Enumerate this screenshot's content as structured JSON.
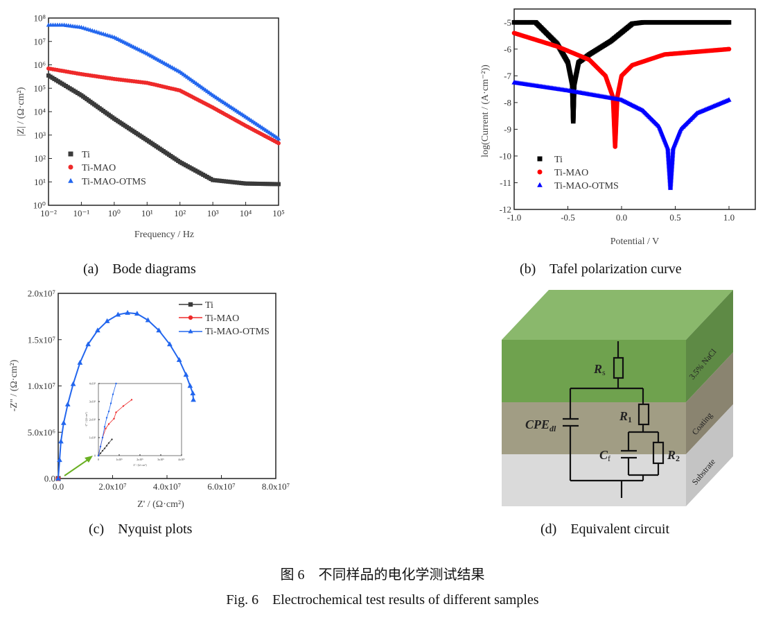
{
  "colors": {
    "Ti": "#3a3a3a",
    "Ti-MAO": "#ee2a2a",
    "Ti-MAO-OTMS": "#2266ee",
    "tafel_Ti": "#000000",
    "tafel_MAO": "#ff0000",
    "tafel_OTMS": "#0000ff",
    "arrow": "#6ab023"
  },
  "captions": {
    "a": "(a)    Bode diagrams",
    "b": "(b)    Tafel polarization curve",
    "c": "(c)    Nyquist plots",
    "d": "(d)    Equivalent circuit"
  },
  "figure": {
    "title_cn": "图 6    不同样品的电化学测试结果",
    "title_en": "Fig. 6    Electrochemical test results of different samples"
  },
  "chart_data": [
    {
      "id": "bode",
      "type": "scatter",
      "xlabel": "Frequency / Hz",
      "ylabel": "|Z| / (Ω·cm²)",
      "xscale": "log",
      "yscale": "log",
      "xlim": [
        0.01,
        100000
      ],
      "ylim": [
        1,
        100000000
      ],
      "xticks": [
        0.01,
        0.1,
        1,
        10,
        100,
        1000,
        10000,
        100000
      ],
      "xtick_labels": [
        "10⁻²",
        "10⁻¹",
        "10⁰",
        "10¹",
        "10²",
        "10³",
        "10⁴",
        "10⁵"
      ],
      "yticks": [
        1,
        10,
        100,
        1000,
        10000,
        100000,
        1000000,
        10000000,
        100000000
      ],
      "ytick_labels": [
        "10⁰",
        "10¹",
        "10²",
        "10³",
        "10⁴",
        "10⁵",
        "10⁶",
        "10⁷",
        "10⁸"
      ],
      "legend": "bottom-left",
      "series": [
        {
          "name": "Ti",
          "marker": "square",
          "x": [
            0.01,
            0.1,
            1,
            10,
            100,
            1000,
            10000,
            100000
          ],
          "y": [
            350000,
            50000,
            5000,
            600,
            70,
            12,
            8.5,
            8
          ]
        },
        {
          "name": "Ti-MAO",
          "marker": "circle",
          "x": [
            0.01,
            0.1,
            1,
            10,
            100,
            1000,
            10000,
            100000
          ],
          "y": [
            700000,
            400000,
            250000,
            170000,
            80000,
            15000,
            2500,
            450
          ]
        },
        {
          "name": "Ti-MAO-OTMS",
          "marker": "triangle",
          "x": [
            0.01,
            0.03,
            0.1,
            1,
            10,
            100,
            1000,
            10000,
            100000
          ],
          "y": [
            50000000,
            50000000,
            40000000,
            15000000,
            3000000,
            500000,
            50000,
            6000,
            700
          ]
        }
      ]
    },
    {
      "id": "tafel",
      "type": "scatter",
      "xlabel": "Potential / V",
      "ylabel": "log(Current / (A·cm⁻²))",
      "xlim": [
        -1.0,
        1.245
      ],
      "ylim": [
        -12,
        -4.5
      ],
      "xticks": [
        -1.0,
        -0.5,
        0.0,
        0.5,
        1.0
      ],
      "xtick_labels": [
        "-1.0",
        "-0.5",
        "0.0",
        "0.5",
        "1.0"
      ],
      "yticks": [
        -12,
        -11,
        -10,
        -9,
        -8,
        -7,
        -6,
        -5
      ],
      "ytick_labels": [
        "-12",
        "-11",
        "-10",
        "-9",
        "-8",
        "-7",
        "-6",
        "-5"
      ],
      "legend": "bottom-left",
      "series": [
        {
          "name": "Ti",
          "marker": "square",
          "x": [
            -1.0,
            -0.8,
            -0.6,
            -0.5,
            -0.46,
            -0.45,
            -0.44,
            -0.4,
            -0.3,
            -0.1,
            0.1,
            0.2,
            1.0
          ],
          "y": [
            -5,
            -5,
            -5.8,
            -6.5,
            -7.3,
            -8.7,
            -7.3,
            -6.5,
            -6.2,
            -5.7,
            -5.05,
            -5,
            -5
          ]
        },
        {
          "name": "Ti-MAO",
          "marker": "circle",
          "x": [
            -1.0,
            -0.6,
            -0.3,
            -0.15,
            -0.08,
            -0.06,
            -0.04,
            0.0,
            0.1,
            0.4,
            1.0
          ],
          "y": [
            -5.4,
            -5.9,
            -6.4,
            -7.0,
            -7.8,
            -9.65,
            -7.8,
            -7.0,
            -6.6,
            -6.2,
            -6.0
          ]
        },
        {
          "name": "Ti-MAO-OTMS",
          "marker": "triangle",
          "x": [
            -1.0,
            -0.5,
            0.0,
            0.2,
            0.35,
            0.43,
            0.455,
            0.48,
            0.55,
            0.7,
            1.0
          ],
          "y": [
            -7.25,
            -7.55,
            -7.9,
            -8.3,
            -8.9,
            -9.7,
            -11.2,
            -9.7,
            -9.0,
            -8.4,
            -7.9
          ]
        }
      ]
    },
    {
      "id": "nyquist",
      "type": "line",
      "xlabel": "Z' / (Ω·cm²)",
      "ylabel": "-Z'' / (Ω·cm²)",
      "xlim": [
        0,
        80000000
      ],
      "ylim": [
        0,
        20000000
      ],
      "xticks": [
        0,
        20000000,
        40000000,
        60000000,
        80000000
      ],
      "xtick_labels": [
        "0.0",
        "2.0x10⁷",
        "4.0x10⁷",
        "6.0x10⁷",
        "8.0x10⁷"
      ],
      "yticks": [
        0,
        5000000,
        10000000,
        15000000,
        20000000
      ],
      "ytick_labels": [
        "0.0",
        "5.0x10⁶",
        "1.0x10⁷",
        "1.5x10⁷",
        "2.0x10⁷"
      ],
      "legend": "top-right",
      "series": [
        {
          "name": "Ti",
          "marker": "square",
          "x": [
            0
          ],
          "y": [
            0
          ]
        },
        {
          "name": "Ti-MAO",
          "marker": "circle",
          "x": [
            0
          ],
          "y": [
            0
          ]
        },
        {
          "name": "Ti-MAO-OTMS",
          "marker": "triangle",
          "x": [
            0,
            500000,
            1000000,
            2000000,
            3500000,
            5500000,
            8000000,
            11000000,
            14500000,
            18000000,
            22000000,
            25500000,
            29000000,
            33000000,
            37000000,
            41000000,
            44500000,
            47000000,
            48500000,
            49500000,
            49700000
          ],
          "y": [
            0,
            2000000,
            4000000,
            6000000,
            8000000,
            10200000,
            12500000,
            14500000,
            16000000,
            17000000,
            17700000,
            17900000,
            17800000,
            17100000,
            16000000,
            14500000,
            12800000,
            11200000,
            10000000,
            9200000,
            8500000
          ]
        }
      ],
      "inset": {
        "xlabel": "Z' / (Ω·cm²)",
        "ylabel": "-Z'' / (Ω·cm²)",
        "xlim": [
          0,
          4
        ],
        "ylim": [
          0,
          4
        ],
        "xticks": [
          0,
          1,
          2,
          3,
          4
        ],
        "xtick_labels": [
          "0",
          "1x10⁵",
          "2x10⁵",
          "3x10⁵",
          "4x10⁵"
        ],
        "yticks": [
          0,
          1,
          2,
          3,
          4
        ],
        "ytick_labels": [
          "0",
          "1x10⁵",
          "2x10⁵",
          "3x10⁵",
          "4x10⁵"
        ],
        "series": [
          {
            "name": "Ti",
            "x": [
              0,
              0.1,
              0.2,
              0.3,
              0.4,
              0.5,
              0.65
            ],
            "y": [
              0,
              0.13,
              0.27,
              0.4,
              0.55,
              0.7,
              0.9
            ]
          },
          {
            "name": "Ti-MAO",
            "x": [
              0,
              0.1,
              0.2,
              0.35,
              0.5,
              0.75,
              0.85,
              1.2,
              1.6
            ],
            "y": [
              0,
              0.5,
              1.0,
              1.5,
              1.75,
              2.05,
              2.4,
              2.75,
              3.1
            ]
          },
          {
            "name": "Ti-MAO-OTMS",
            "x": [
              0,
              0.1,
              0.2,
              0.3,
              0.4,
              0.5,
              0.6,
              0.7,
              0.85
            ],
            "y": [
              0,
              0.5,
              1.0,
              1.6,
              2.1,
              2.45,
              2.9,
              3.4,
              4.0
            ]
          }
        ]
      }
    }
  ],
  "circuit": {
    "layers": [
      "3.5% NaCl",
      "Coating",
      "Substrate"
    ],
    "layer_colors": {
      "electrolyte": "#7fae5e",
      "coating": "#9e9a80",
      "substrate": "#d9d9d9"
    },
    "labels": {
      "Rs": "R",
      "Rs_sub": "s",
      "R1": "R",
      "R1_sub": "1",
      "R2": "R",
      "R2_sub": "2",
      "Cf": "C",
      "Cf_sub": "f",
      "CPE": "CPE",
      "CPE_sub": "dl"
    }
  }
}
